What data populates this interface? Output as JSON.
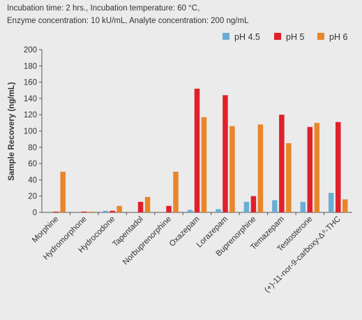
{
  "notes": [
    "Incubation time: 2 hrs., Incubation temperature: 60 °C,",
    "Enzyme concentration: 10 kU/mL, Analyte concentration: 200 ng/mL"
  ],
  "chart_data": {
    "type": "bar",
    "ylabel": "Sample Recovery (ng/mL)",
    "xlabel": "",
    "ylim": [
      0,
      200
    ],
    "yticks": [
      0,
      20,
      40,
      60,
      80,
      100,
      120,
      140,
      160,
      180,
      200
    ],
    "grid": false,
    "legend_position": "top-right",
    "categories": [
      "Morphine",
      "Hydromorphone",
      "Hydrocodone",
      "Tapentadol",
      "Norbuprenorphine",
      "Oxazepam",
      "Lorazepam",
      "Buprenorphine",
      "Temazepam",
      "Testosterone",
      "(+)-11-nor-9-carboxy-Δ⁹-THC"
    ],
    "series": [
      {
        "name": "pH 4.5",
        "color": "#6aaed6",
        "values": [
          0,
          0,
          2,
          0,
          0,
          3,
          4,
          13,
          15,
          13,
          24
        ]
      },
      {
        "name": "pH 5",
        "color": "#e0202a",
        "values": [
          1,
          1,
          2,
          13,
          8,
          152,
          144,
          20,
          120,
          105,
          111
        ]
      },
      {
        "name": "pH 6",
        "color": "#e8862a",
        "values": [
          50,
          1,
          8,
          19,
          50,
          117,
          106,
          108,
          85,
          110,
          16
        ]
      }
    ]
  }
}
